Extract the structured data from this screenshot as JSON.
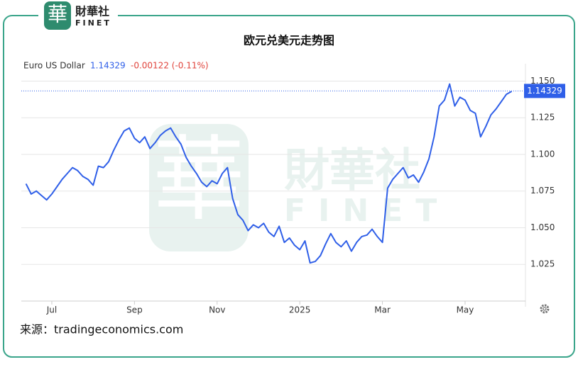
{
  "chart_data": {
    "type": "line",
    "title": "欧元兑美元走势图",
    "logo": {
      "mark": "華",
      "name": "財華社",
      "latin": "FINET"
    },
    "series": [
      {
        "name": "Euro US Dollar",
        "color": "#2f5fe8",
        "values": [
          1.08,
          1.073,
          1.075,
          1.072,
          1.069,
          1.073,
          1.078,
          1.083,
          1.087,
          1.091,
          1.089,
          1.085,
          1.083,
          1.079,
          1.092,
          1.091,
          1.095,
          1.103,
          1.11,
          1.116,
          1.118,
          1.111,
          1.108,
          1.112,
          1.104,
          1.108,
          1.113,
          1.116,
          1.118,
          1.112,
          1.107,
          1.098,
          1.092,
          1.087,
          1.081,
          1.078,
          1.082,
          1.08,
          1.087,
          1.091,
          1.07,
          1.059,
          1.055,
          1.048,
          1.052,
          1.05,
          1.053,
          1.047,
          1.044,
          1.051,
          1.04,
          1.043,
          1.038,
          1.035,
          1.041,
          1.026,
          1.027,
          1.031,
          1.039,
          1.046,
          1.04,
          1.037,
          1.041,
          1.034,
          1.04,
          1.044,
          1.045,
          1.049,
          1.044,
          1.04,
          1.077,
          1.083,
          1.087,
          1.091,
          1.084,
          1.086,
          1.081,
          1.088,
          1.097,
          1.112,
          1.133,
          1.137,
          1.148,
          1.133,
          1.139,
          1.137,
          1.13,
          1.128,
          1.112,
          1.119,
          1.127,
          1.131,
          1.136,
          1.141,
          1.143
        ]
      }
    ],
    "categories": [
      null,
      null,
      null,
      null,
      null,
      "Jul",
      null,
      null,
      null,
      null,
      null,
      null,
      null,
      null,
      null,
      null,
      null,
      null,
      null,
      null,
      null,
      "Sep",
      null,
      null,
      null,
      null,
      null,
      null,
      null,
      null,
      null,
      null,
      null,
      null,
      null,
      null,
      null,
      "Nov",
      null,
      null,
      null,
      null,
      null,
      null,
      null,
      null,
      null,
      null,
      null,
      null,
      null,
      null,
      null,
      "2025",
      null,
      null,
      null,
      null,
      null,
      null,
      null,
      null,
      null,
      null,
      null,
      null,
      null,
      null,
      null,
      "Mar",
      null,
      null,
      null,
      null,
      null,
      null,
      null,
      null,
      null,
      null,
      null,
      null,
      null,
      null,
      null,
      "May",
      null,
      null,
      null,
      null,
      null,
      null,
      null,
      null,
      null
    ],
    "last_value": 1.14329,
    "change_label": "-0.00122 (-0.11%)",
    "change_color": "#e0443c",
    "ylim": [
      1.0,
      1.157
    ],
    "yticks": [
      1.025,
      {
        "value": 1.05,
        "label": "1.050"
      },
      1.075,
      {
        "value": 1.1,
        "label": "1.100"
      },
      1.125,
      {
        "value": 1.15,
        "label": "1.150"
      }
    ],
    "grid": true,
    "source": "来源：tradingeconomics.com"
  }
}
